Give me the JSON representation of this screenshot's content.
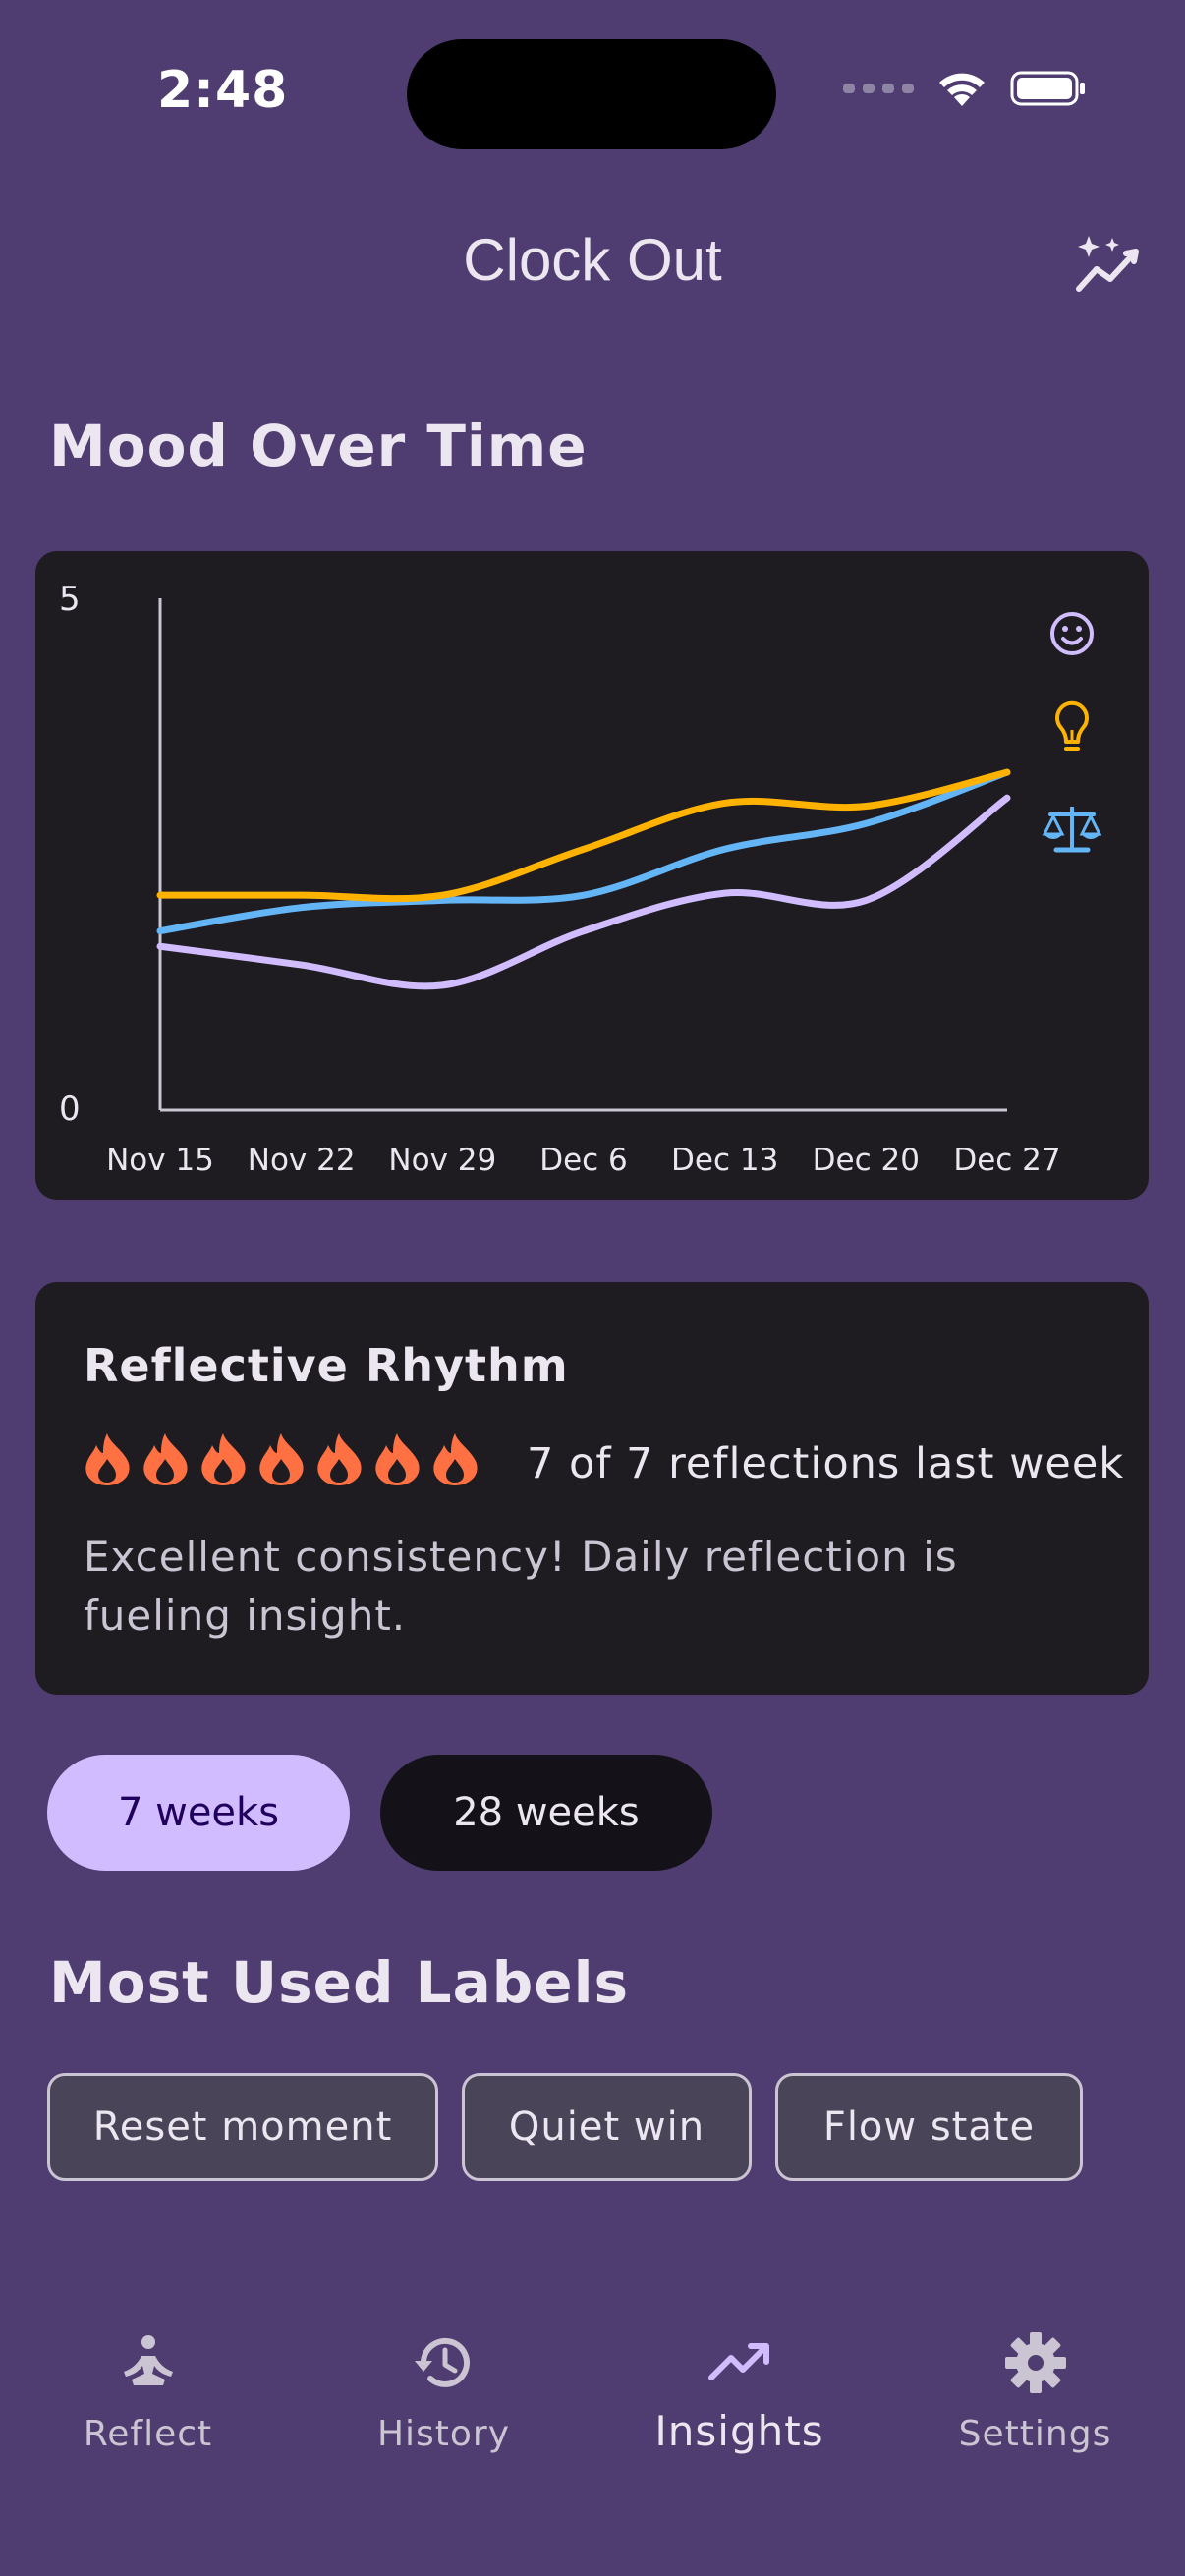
{
  "status_bar": {
    "time": "2:48"
  },
  "app_bar": {
    "title": "Clock Out",
    "action_icon": "auto-graph-icon"
  },
  "mood": {
    "section_title": "Mood Over Time",
    "chart_data": {
      "type": "line",
      "x": [
        "Nov 15",
        "Nov 22",
        "Nov 29",
        "Dec 6",
        "Dec 13",
        "Dec 20",
        "Dec 27"
      ],
      "ylim": [
        0,
        5
      ],
      "y_ticks": [
        "5",
        "0"
      ],
      "series": [
        {
          "icon": "smiley-icon",
          "color": "#d0bcff",
          "values": [
            1.6,
            1.42,
            1.22,
            1.75,
            2.12,
            2.05,
            3.05
          ]
        },
        {
          "icon": "lightbulb-icon",
          "color": "#ffb300",
          "values": [
            2.1,
            2.1,
            2.1,
            2.55,
            3.0,
            2.97,
            3.3
          ]
        },
        {
          "icon": "balance-scale-icon",
          "color": "#64b5f6",
          "values": [
            1.75,
            1.98,
            2.05,
            2.1,
            2.55,
            2.8,
            3.3
          ]
        }
      ],
      "grid": false
    }
  },
  "rhythm": {
    "title": "Reflective Rhythm",
    "flame_count": 7,
    "flame_color": "#ff7043",
    "count_text": "7 of 7 reflections last week",
    "description": "Excellent consistency! Daily reflection is fueling insight."
  },
  "range": {
    "option_7": "7 weeks",
    "option_28": "28 weeks",
    "selected": "7 weeks"
  },
  "labels": {
    "section_title": "Most Used Labels",
    "items": [
      "Reset moment",
      "Quiet win",
      "Flow state"
    ]
  },
  "nav": {
    "items": [
      {
        "label": "Reflect",
        "icon": "meditation-icon"
      },
      {
        "label": "History",
        "icon": "history-icon"
      },
      {
        "label": "Insights",
        "icon": "trending-up-icon",
        "active": true
      },
      {
        "label": "Settings",
        "icon": "gear-icon"
      }
    ]
  },
  "colors": {
    "background": "#4f3d71",
    "card": "#1e1c21",
    "accent": "#d0bcff"
  }
}
